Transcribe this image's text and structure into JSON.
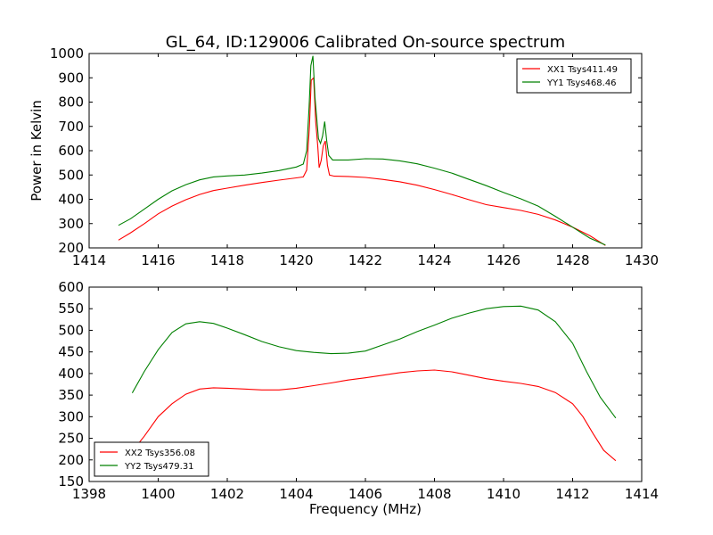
{
  "figure": {
    "title": "GL_64, ID:129006 Calibrated On-source spectrum",
    "ylabel": "Power in Kelvin",
    "xlabel": "Frequency (MHz)"
  },
  "chart_data": [
    {
      "type": "line",
      "xlim": [
        1414,
        1430
      ],
      "ylim": [
        200,
        1000
      ],
      "xticks": [
        "1414",
        "1416",
        "1418",
        "1420",
        "1422",
        "1424",
        "1426",
        "1428",
        "1430"
      ],
      "yticks": [
        "200",
        "300",
        "400",
        "500",
        "600",
        "700",
        "800",
        "900",
        "1000"
      ],
      "grid": false,
      "legend_position": "top-right",
      "series": [
        {
          "name": "XX1 Tsys411.49",
          "color": "#ff0000",
          "points": [
            [
              1414.85,
              232
            ],
            [
              1415.2,
              262
            ],
            [
              1415.6,
              300
            ],
            [
              1416.0,
              340
            ],
            [
              1416.4,
              372
            ],
            [
              1416.8,
              398
            ],
            [
              1417.2,
              420
            ],
            [
              1417.6,
              436
            ],
            [
              1418.0,
              446
            ],
            [
              1418.5,
              458
            ],
            [
              1419.0,
              469
            ],
            [
              1419.5,
              479
            ],
            [
              1420.0,
              488
            ],
            [
              1420.2,
              492
            ],
            [
              1420.3,
              520
            ],
            [
              1420.38,
              700
            ],
            [
              1420.43,
              890
            ],
            [
              1420.5,
              900
            ],
            [
              1420.56,
              720
            ],
            [
              1420.62,
              620
            ],
            [
              1420.66,
              530
            ],
            [
              1420.72,
              560
            ],
            [
              1420.78,
              620
            ],
            [
              1420.84,
              640
            ],
            [
              1420.9,
              540
            ],
            [
              1420.96,
              500
            ],
            [
              1421.1,
              495
            ],
            [
              1421.5,
              494
            ],
            [
              1422.0,
              490
            ],
            [
              1422.5,
              482
            ],
            [
              1423.0,
              472
            ],
            [
              1423.5,
              458
            ],
            [
              1424.0,
              440
            ],
            [
              1424.5,
              420
            ],
            [
              1425.0,
              398
            ],
            [
              1425.5,
              378
            ],
            [
              1426.0,
              366
            ],
            [
              1426.5,
              354
            ],
            [
              1427.0,
              338
            ],
            [
              1427.5,
              315
            ],
            [
              1428.0,
              285
            ],
            [
              1428.5,
              250
            ],
            [
              1428.95,
              210
            ]
          ]
        },
        {
          "name": "YY1 Tsys468.46",
          "color": "#008000",
          "points": [
            [
              1414.85,
              293
            ],
            [
              1415.2,
              320
            ],
            [
              1415.6,
              360
            ],
            [
              1416.0,
              400
            ],
            [
              1416.4,
              435
            ],
            [
              1416.8,
              460
            ],
            [
              1417.2,
              480
            ],
            [
              1417.6,
              492
            ],
            [
              1418.0,
              496
            ],
            [
              1418.5,
              500
            ],
            [
              1419.0,
              508
            ],
            [
              1419.5,
              518
            ],
            [
              1420.0,
              533
            ],
            [
              1420.2,
              545
            ],
            [
              1420.3,
              600
            ],
            [
              1420.37,
              780
            ],
            [
              1420.42,
              950
            ],
            [
              1420.48,
              990
            ],
            [
              1420.54,
              820
            ],
            [
              1420.6,
              720
            ],
            [
              1420.64,
              650
            ],
            [
              1420.7,
              630
            ],
            [
              1420.76,
              660
            ],
            [
              1420.82,
              720
            ],
            [
              1420.88,
              640
            ],
            [
              1420.94,
              580
            ],
            [
              1421.05,
              562
            ],
            [
              1421.5,
              562
            ],
            [
              1422.0,
              567
            ],
            [
              1422.5,
              566
            ],
            [
              1423.0,
              558
            ],
            [
              1423.5,
              546
            ],
            [
              1424.0,
              528
            ],
            [
              1424.5,
              508
            ],
            [
              1425.0,
              482
            ],
            [
              1425.5,
              456
            ],
            [
              1426.0,
              428
            ],
            [
              1426.5,
              402
            ],
            [
              1427.0,
              372
            ],
            [
              1427.5,
              330
            ],
            [
              1428.0,
              285
            ],
            [
              1428.5,
              240
            ],
            [
              1428.95,
              212
            ]
          ]
        }
      ]
    },
    {
      "type": "line",
      "xlim": [
        1398,
        1414
      ],
      "ylim": [
        150,
        600
      ],
      "xticks": [
        "1398",
        "1400",
        "1402",
        "1404",
        "1406",
        "1408",
        "1410",
        "1412",
        "1414"
      ],
      "yticks": [
        "150",
        "200",
        "250",
        "300",
        "350",
        "400",
        "450",
        "500",
        "550",
        "600"
      ],
      "grid": false,
      "legend_position": "bottom-left",
      "series": [
        {
          "name": "XX2 Tsys356.08",
          "color": "#ff0000",
          "points": [
            [
              1399.25,
              220
            ],
            [
              1399.6,
              255
            ],
            [
              1400.0,
              300
            ],
            [
              1400.4,
              330
            ],
            [
              1400.8,
              352
            ],
            [
              1401.2,
              364
            ],
            [
              1401.6,
              367
            ],
            [
              1402.0,
              366
            ],
            [
              1402.5,
              364
            ],
            [
              1403.0,
              362
            ],
            [
              1403.5,
              362
            ],
            [
              1404.0,
              366
            ],
            [
              1404.5,
              372
            ],
            [
              1405.0,
              378
            ],
            [
              1405.5,
              385
            ],
            [
              1406.0,
              390
            ],
            [
              1406.5,
              396
            ],
            [
              1407.0,
              402
            ],
            [
              1407.5,
              406
            ],
            [
              1408.0,
              408
            ],
            [
              1408.5,
              404
            ],
            [
              1409.0,
              396
            ],
            [
              1409.5,
              388
            ],
            [
              1410.0,
              382
            ],
            [
              1410.5,
              377
            ],
            [
              1411.0,
              370
            ],
            [
              1411.5,
              356
            ],
            [
              1412.0,
              330
            ],
            [
              1412.3,
              300
            ],
            [
              1412.6,
              260
            ],
            [
              1412.9,
              222
            ],
            [
              1413.25,
              198
            ]
          ]
        },
        {
          "name": "YY2 Tsys479.31",
          "color": "#008000",
          "points": [
            [
              1399.25,
              355
            ],
            [
              1399.6,
              405
            ],
            [
              1400.0,
              455
            ],
            [
              1400.4,
              495
            ],
            [
              1400.8,
              515
            ],
            [
              1401.2,
              520
            ],
            [
              1401.6,
              516
            ],
            [
              1402.0,
              505
            ],
            [
              1402.5,
              490
            ],
            [
              1403.0,
              474
            ],
            [
              1403.5,
              462
            ],
            [
              1404.0,
              453
            ],
            [
              1404.5,
              449
            ],
            [
              1405.0,
              446
            ],
            [
              1405.5,
              447
            ],
            [
              1406.0,
              452
            ],
            [
              1406.5,
              466
            ],
            [
              1407.0,
              480
            ],
            [
              1407.5,
              497
            ],
            [
              1408.0,
              512
            ],
            [
              1408.5,
              528
            ],
            [
              1409.0,
              540
            ],
            [
              1409.5,
              550
            ],
            [
              1410.0,
              555
            ],
            [
              1410.5,
              556
            ],
            [
              1411.0,
              547
            ],
            [
              1411.5,
              520
            ],
            [
              1412.0,
              470
            ],
            [
              1412.4,
              405
            ],
            [
              1412.8,
              345
            ],
            [
              1413.25,
              297
            ]
          ]
        }
      ]
    }
  ]
}
